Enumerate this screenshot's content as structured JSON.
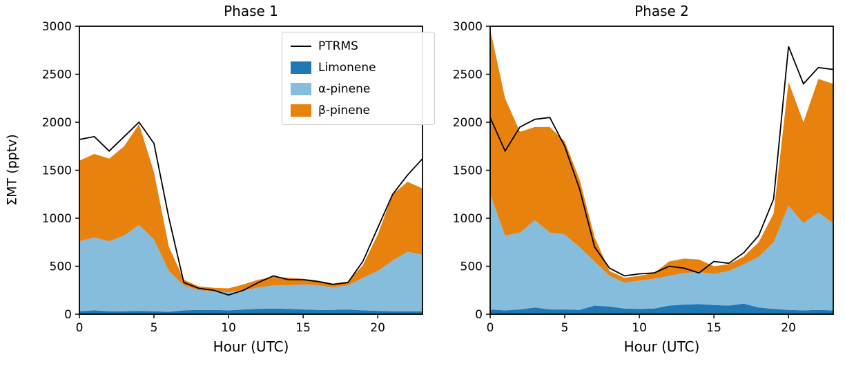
{
  "figure": {
    "background": "#ffffff"
  },
  "colors": {
    "limonene": "#1f77b4",
    "alpha_pinene": "#86bcdc",
    "beta_pinene": "#e8820e",
    "ptrms_line": "#000000"
  },
  "legend": {
    "entries": [
      {
        "label": "PTRMS",
        "type": "line",
        "color": "#000000"
      },
      {
        "label": "Limonene",
        "type": "patch",
        "color": "#1f77b4"
      },
      {
        "label": "α-pinene",
        "type": "patch",
        "color": "#86bcdc"
      },
      {
        "label": "β-pinene",
        "type": "patch",
        "color": "#e8820e"
      }
    ]
  },
  "chart_data": [
    {
      "type": "area",
      "title": "Phase 1",
      "xlabel": "Hour (UTC)",
      "ylabel": "ΣMT (pptv)",
      "xlim": [
        0,
        23
      ],
      "ylim": [
        0,
        3000
      ],
      "x_ticks": [
        0,
        5,
        10,
        15,
        20
      ],
      "y_ticks": [
        0,
        500,
        1000,
        1500,
        2000,
        2500,
        3000
      ],
      "x": [
        0,
        1,
        2,
        3,
        4,
        5,
        6,
        7,
        8,
        9,
        10,
        11,
        12,
        13,
        14,
        15,
        16,
        17,
        18,
        19,
        20,
        21,
        22,
        23
      ],
      "series": [
        {
          "name": "Limonene",
          "color": "#1f77b4",
          "values": [
            30,
            40,
            30,
            30,
            35,
            30,
            25,
            40,
            45,
            45,
            40,
            50,
            55,
            60,
            55,
            50,
            45,
            45,
            50,
            40,
            35,
            30,
            30,
            30
          ]
        },
        {
          "name": "alpha-pinene",
          "color": "#86bcdc",
          "values": [
            730,
            760,
            730,
            790,
            895,
            750,
            425,
            260,
            205,
            195,
            190,
            200,
            225,
            240,
            245,
            260,
            255,
            235,
            250,
            340,
            415,
            530,
            620,
            590
          ]
        },
        {
          "name": "beta-pinene",
          "color": "#e8820e",
          "values": [
            840,
            870,
            860,
            930,
            1050,
            700,
            250,
            60,
            40,
            35,
            40,
            60,
            80,
            90,
            80,
            60,
            50,
            40,
            40,
            130,
            380,
            690,
            730,
            690
          ]
        }
      ],
      "line": {
        "name": "PTRMS",
        "color": "#000000",
        "values": [
          1820,
          1850,
          1700,
          1850,
          2000,
          1780,
          1000,
          330,
          270,
          250,
          200,
          250,
          330,
          400,
          360,
          360,
          340,
          310,
          330,
          550,
          900,
          1250,
          1450,
          1620
        ]
      }
    },
    {
      "type": "area",
      "title": "Phase 2",
      "xlabel": "Hour (UTC)",
      "ylabel": "",
      "xlim": [
        0,
        23
      ],
      "ylim": [
        0,
        3000
      ],
      "x_ticks": [
        0,
        5,
        10,
        15,
        20
      ],
      "y_ticks": [
        0,
        500,
        1000,
        1500,
        2000,
        2500,
        3000
      ],
      "x": [
        0,
        1,
        2,
        3,
        4,
        5,
        6,
        7,
        8,
        9,
        10,
        11,
        12,
        13,
        14,
        15,
        16,
        17,
        18,
        19,
        20,
        21,
        22,
        23
      ],
      "series": [
        {
          "name": "Limonene",
          "color": "#1f77b4",
          "values": [
            50,
            40,
            50,
            70,
            50,
            50,
            45,
            90,
            80,
            60,
            55,
            60,
            90,
            100,
            105,
            95,
            90,
            110,
            70,
            55,
            45,
            40,
            45,
            40
          ]
        },
        {
          "name": "alpha-pinene",
          "color": "#86bcdc",
          "values": [
            1200,
            780,
            800,
            910,
            800,
            780,
            655,
            460,
            320,
            270,
            295,
            310,
            310,
            330,
            335,
            325,
            360,
            410,
            530,
            695,
            1085,
            910,
            1015,
            910
          ]
        },
        {
          "name": "beta-pinene",
          "color": "#e8820e",
          "values": [
            1720,
            1430,
            1050,
            970,
            1100,
            970,
            700,
            250,
            50,
            50,
            50,
            60,
            150,
            150,
            130,
            80,
            70,
            80,
            150,
            300,
            1290,
            1050,
            1390,
            1450
          ]
        }
      ],
      "line": {
        "name": "PTRMS",
        "color": "#000000",
        "values": [
          2050,
          1700,
          1950,
          2030,
          2050,
          1750,
          1300,
          700,
          480,
          400,
          420,
          430,
          500,
          480,
          430,
          550,
          530,
          640,
          820,
          1200,
          2790,
          2400,
          2570,
          2550
        ]
      }
    }
  ]
}
